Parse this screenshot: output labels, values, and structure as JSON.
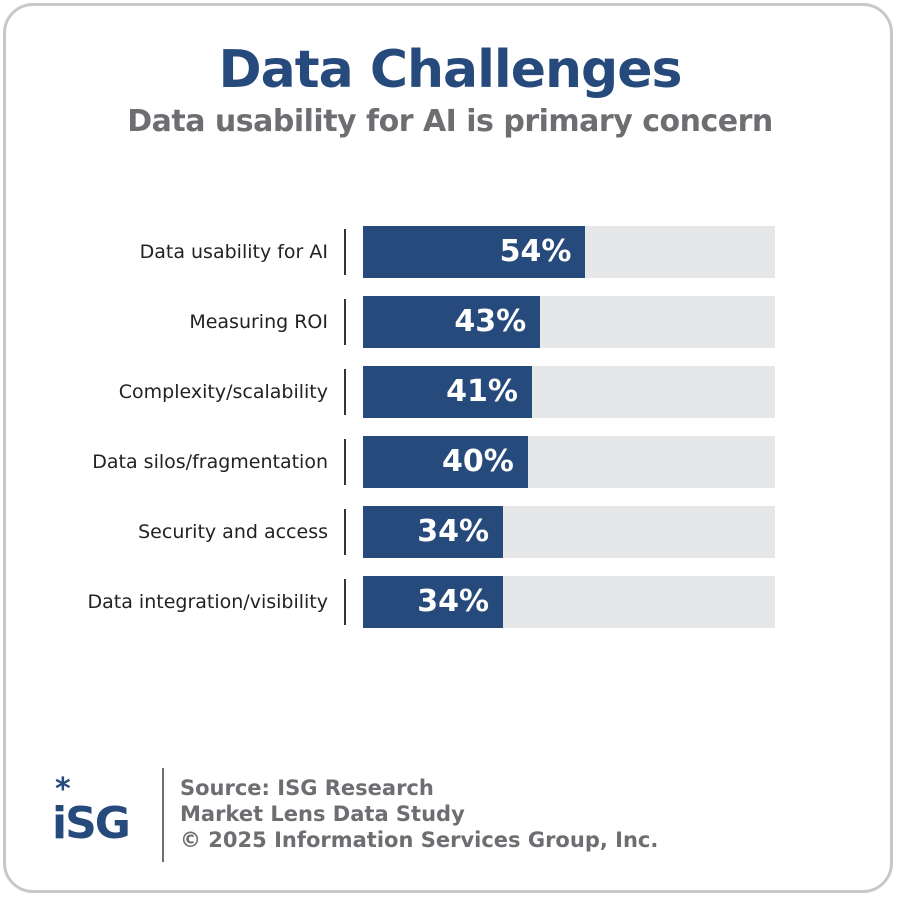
{
  "chart_data": {
    "type": "bar",
    "orientation": "horizontal",
    "title": "Data Challenges",
    "subtitle": "Data usability for AI is primary concern",
    "categories": [
      "Data usability for AI",
      "Measuring ROI",
      "Complexity/scalability",
      "Data silos/fragmentation",
      "Security and access",
      "Data integration/visibility"
    ],
    "values": [
      54,
      43,
      41,
      40,
      34,
      34
    ],
    "value_labels": [
      "54%",
      "43%",
      "41%",
      "40%",
      "34%",
      "34%"
    ],
    "xlim": [
      0,
      100
    ],
    "grid": false,
    "colors": {
      "bar": "#264a7c",
      "track": "#e6e7e9",
      "title": "#264a7c",
      "subtitle": "#6d6e71"
    }
  },
  "footer": {
    "logo": "ISG",
    "source": "Source: ISG Research",
    "study": "Market Lens Data Study",
    "copyright": "© 2025 Information Services Group, Inc."
  }
}
